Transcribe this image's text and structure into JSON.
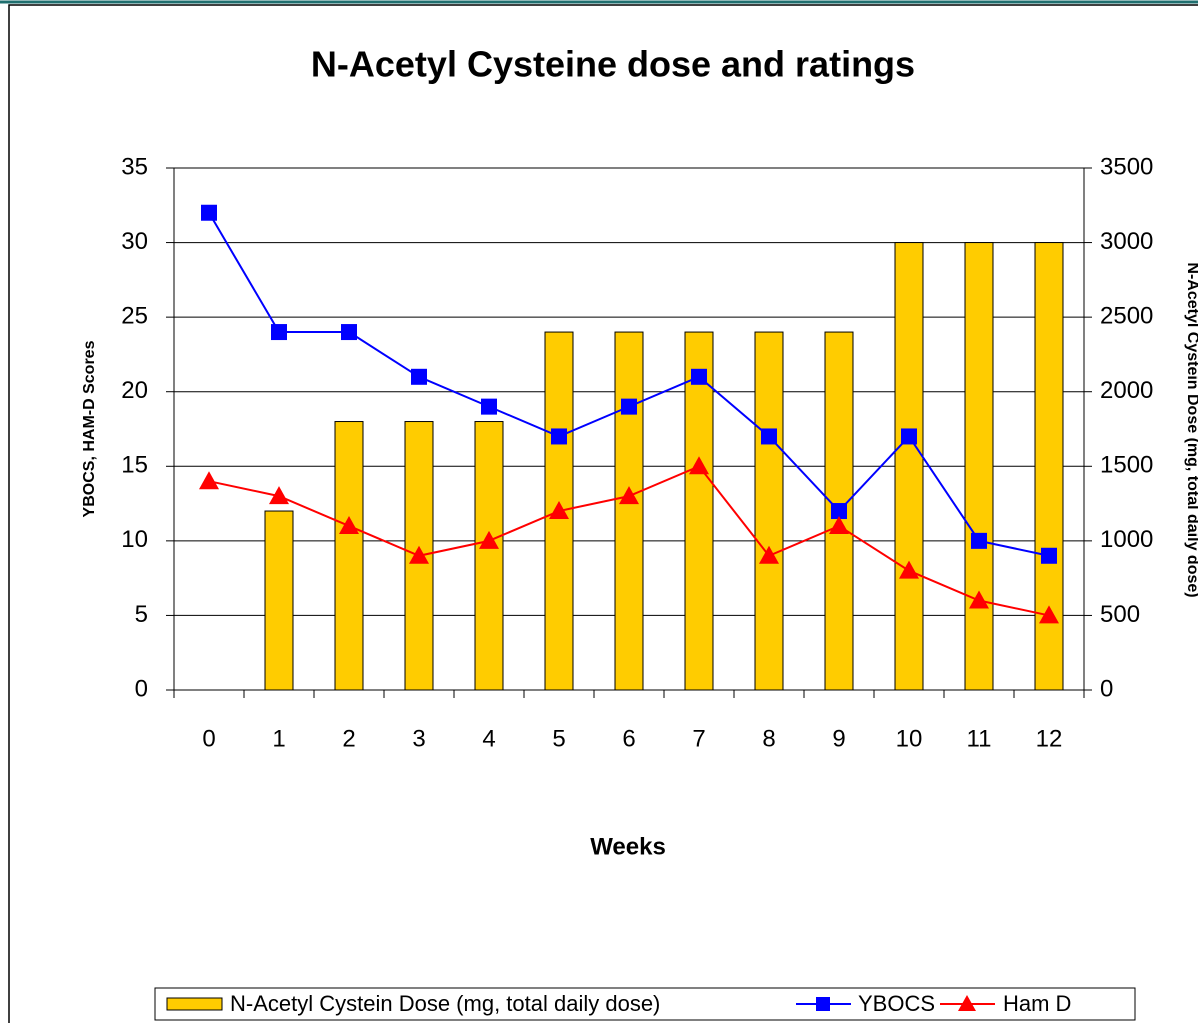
{
  "chart_data": {
    "type": "bar_line",
    "title": "N-Acetyl Cysteine dose and ratings",
    "x_label": "Weeks",
    "y_label": "YBOCS, HAM-D Scores",
    "y2_label": "N-Acetyl Cystein Dose (mg, total daily dose)",
    "categories": [
      "0",
      "1",
      "2",
      "3",
      "4",
      "5",
      "6",
      "7",
      "8",
      "9",
      "10",
      "11",
      "12"
    ],
    "series": [
      {
        "name": "N-Acetyl Cystein Dose (mg, total daily dose)",
        "kind": "bar",
        "axis": "y2",
        "color": "#FFCC00",
        "values": [
          0,
          1200,
          1800,
          1800,
          1800,
          2400,
          2400,
          2400,
          2400,
          2400,
          3000,
          3000,
          3000
        ]
      },
      {
        "name": "YBOCS",
        "kind": "line",
        "marker": "square",
        "color": "#0000FF",
        "values": [
          32,
          24,
          24,
          21,
          19,
          17,
          19,
          21,
          17,
          12,
          17,
          10,
          9
        ]
      },
      {
        "name": "Ham D",
        "kind": "line",
        "marker": "triangle",
        "color": "#FF0000",
        "values": [
          14,
          13,
          11,
          9,
          10,
          12,
          13,
          15,
          9,
          11,
          8,
          6,
          5
        ]
      }
    ],
    "ylim": [
      0,
      35
    ],
    "yticks": [
      0,
      5,
      10,
      15,
      20,
      25,
      30,
      35
    ],
    "y2lim": [
      0,
      3500
    ],
    "y2ticks": [
      0,
      500,
      1000,
      1500,
      2000,
      2500,
      3000,
      3500
    ],
    "grid": true,
    "legend": "bottom"
  }
}
